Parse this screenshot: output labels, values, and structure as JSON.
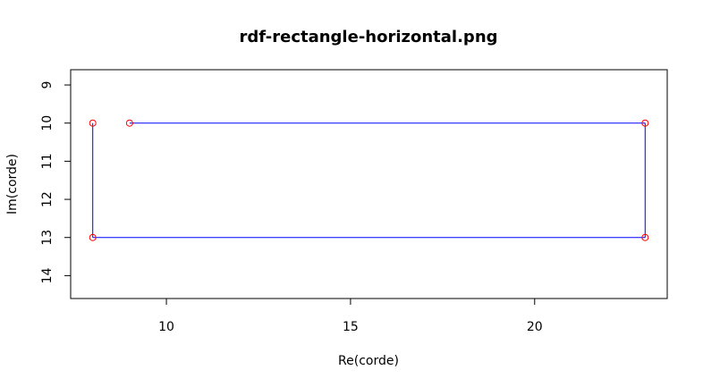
{
  "chart_data": {
    "type": "scatter",
    "title": "rdf-rectangle-horizontal.png",
    "xlabel": "Re(corde)",
    "ylabel": "Im(corde)",
    "xlim": [
      7.4,
      23.6
    ],
    "ylim": [
      8.6,
      14.6
    ],
    "y_reversed": true,
    "xticks": [
      10,
      15,
      20
    ],
    "yticks": [
      9,
      10,
      11,
      12,
      13,
      14
    ],
    "grid": false,
    "legend": "none",
    "series": [
      {
        "points": [
          {
            "x": 9,
            "y": 10
          },
          {
            "x": 23,
            "y": 10
          },
          {
            "x": 23,
            "y": 13
          },
          {
            "x": 8,
            "y": 13
          },
          {
            "x": 8,
            "y": 10
          }
        ],
        "point_color": "#ff0000",
        "line_color": "#0000ff",
        "marker": "open-circle"
      }
    ]
  }
}
